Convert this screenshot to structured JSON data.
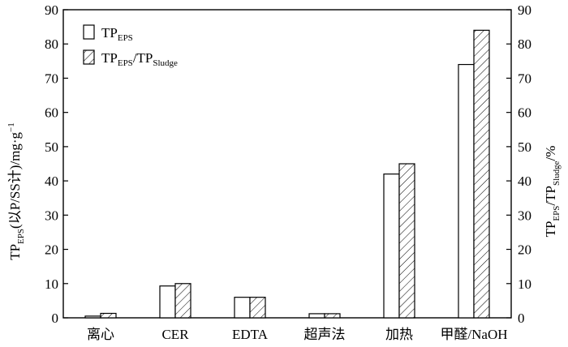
{
  "chart_data": {
    "type": "bar",
    "categories": [
      "离心",
      "CER",
      "EDTA",
      "超声法",
      "加热",
      "甲醛/NaOH"
    ],
    "series": [
      {
        "name_main": "TP",
        "name_sub": "EPS",
        "name_rest": "",
        "name_sub2": "",
        "pattern": "none",
        "values": [
          0.5,
          9.3,
          6.0,
          1.2,
          42.0,
          74.0
        ]
      },
      {
        "name_main": "TP",
        "name_sub": "EPS",
        "name_rest": "/TP",
        "name_sub2": "Sludge",
        "pattern": "hatch",
        "values": [
          1.3,
          10.0,
          6.0,
          1.2,
          45.0,
          84.0
        ]
      }
    ],
    "ylim": [
      0,
      90
    ],
    "y_ticks": [
      "0",
      "10",
      "20",
      "30",
      "40",
      "50",
      "60",
      "70",
      "80",
      "90"
    ],
    "y2_ticks": [
      "0",
      "10",
      "20",
      "30",
      "40",
      "50",
      "60",
      "70",
      "80",
      "90"
    ],
    "ylabel": {
      "main": "TP",
      "sub": "EPS",
      "rest": "(以P/SS计)/mg·g",
      "sup": "−1"
    },
    "y2label": {
      "main": "TP",
      "sub": "EPS",
      "mid": "/TP",
      "sub2": "Sludge",
      "rest": "/%"
    },
    "legend_position": "top-left",
    "grid": false
  }
}
